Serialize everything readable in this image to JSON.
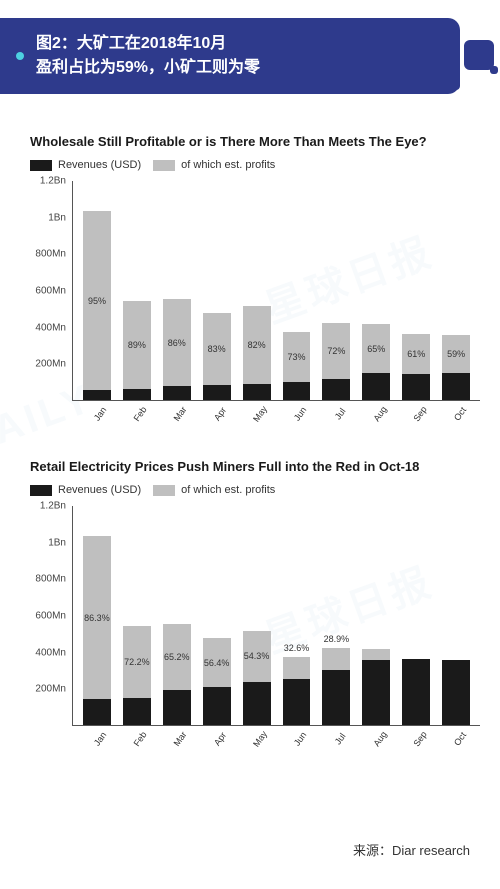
{
  "header": {
    "line1": "图2：大矿工在2018年10月",
    "line2": "盈利占比为59%，小矿工则为零"
  },
  "source_label": "来源：Diar research",
  "colors": {
    "revenue": "#1a1a1a",
    "profit": "#bfbfbf",
    "header_bg": "#2e3a8c",
    "accent": "#4dd0e1"
  },
  "yaxis": {
    "max": 1200,
    "ticks": [
      1200,
      1000,
      800,
      600,
      400,
      200,
      0
    ],
    "labels": [
      "1.2Bn",
      "1Bn",
      "800Mn",
      "600Mn",
      "400Mn",
      "200Mn",
      ""
    ]
  },
  "months": [
    "Jan",
    "Feb",
    "Mar",
    "Apr",
    "May",
    "Jun",
    "Jul",
    "Aug",
    "Sep",
    "Oct"
  ],
  "legend": {
    "rev": "Revenues (USD)",
    "profit": "of which est. profits"
  },
  "chart1": {
    "title": "Wholesale Still Profitable or is There More Than Meets The Eye?",
    "totals": [
      1030,
      540,
      550,
      475,
      515,
      370,
      420,
      415,
      360,
      355
    ],
    "rev_base": [
      55,
      60,
      75,
      80,
      90,
      100,
      115,
      145,
      140,
      145
    ],
    "pct": [
      "95%",
      "89%",
      "86%",
      "83%",
      "82%",
      "73%",
      "72%",
      "65%",
      "61%",
      "59%"
    ],
    "pct_inside": [
      true,
      true,
      true,
      true,
      true,
      true,
      true,
      true,
      true,
      true
    ]
  },
  "chart2": {
    "title": "Retail Electricity Prices Push Miners Full into the Red in Oct-18",
    "totals": [
      1030,
      540,
      550,
      475,
      515,
      370,
      420,
      415,
      360,
      355
    ],
    "rev_base": [
      140,
      150,
      190,
      205,
      235,
      250,
      300,
      355,
      360,
      355
    ],
    "pct": [
      "86.3%",
      "72.2%",
      "65.2%",
      "56.4%",
      "54.3%",
      "32.6%",
      "28.9%",
      "",
      "",
      ""
    ],
    "pct_inside": [
      true,
      true,
      true,
      true,
      true,
      false,
      false,
      false,
      false,
      false
    ]
  }
}
